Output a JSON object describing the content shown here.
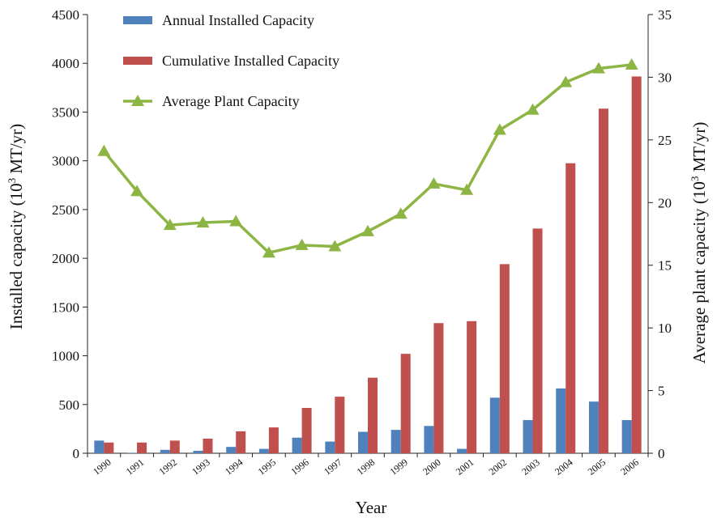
{
  "chart_data": {
    "type": "bar",
    "title": "",
    "xlabel": "Year",
    "ylabel": "Installed capacity (10³ MT/yr)",
    "ylabel_parts": {
      "base": "Installed capacity (10",
      "sup": "3",
      "rest": " MT/yr)"
    },
    "y2label": "Average plant  capacity (10³ MT/yr)",
    "y2label_parts": {
      "base": "Average plant  capacity (10",
      "sup": "3",
      "rest": " MT/yr)"
    },
    "ylim": [
      0,
      4500
    ],
    "y2lim": [
      0,
      35
    ],
    "yticks": [
      0,
      500,
      1000,
      1500,
      2000,
      2500,
      3000,
      3500,
      4000,
      4500
    ],
    "y2ticks": [
      0,
      5,
      10,
      15,
      20,
      25,
      30,
      35
    ],
    "grid": false,
    "legend_position": "top-left",
    "categories": [
      "1990",
      "1991",
      "1992",
      "1993",
      "1994",
      "1995",
      "1996",
      "1997",
      "1998",
      "1999",
      "2000",
      "2001",
      "2002",
      "2003",
      "2004",
      "2005",
      "2006"
    ],
    "series": [
      {
        "name": "Annual Installed Capacity",
        "kind": "bar",
        "axis": "left",
        "color": "#4f81bd",
        "values": [
          130,
          5,
          35,
          25,
          65,
          45,
          160,
          120,
          220,
          240,
          280,
          45,
          570,
          340,
          665,
          530,
          340
        ]
      },
      {
        "name": "Cumulative Installed Capacity",
        "kind": "bar",
        "axis": "left",
        "color": "#c0504d",
        "values": [
          110,
          110,
          130,
          150,
          225,
          265,
          465,
          580,
          775,
          1020,
          1335,
          1355,
          1940,
          2305,
          2975,
          3535,
          3865
        ]
      },
      {
        "name": "Average Plant Capacity",
        "kind": "line",
        "axis": "right",
        "color": "#8db544",
        "marker": "triangle",
        "values": [
          24.1,
          20.9,
          18.2,
          18.4,
          18.5,
          16.0,
          16.6,
          16.5,
          17.7,
          19.1,
          21.5,
          21.0,
          25.8,
          27.4,
          29.6,
          30.7,
          31.0
        ]
      }
    ]
  }
}
